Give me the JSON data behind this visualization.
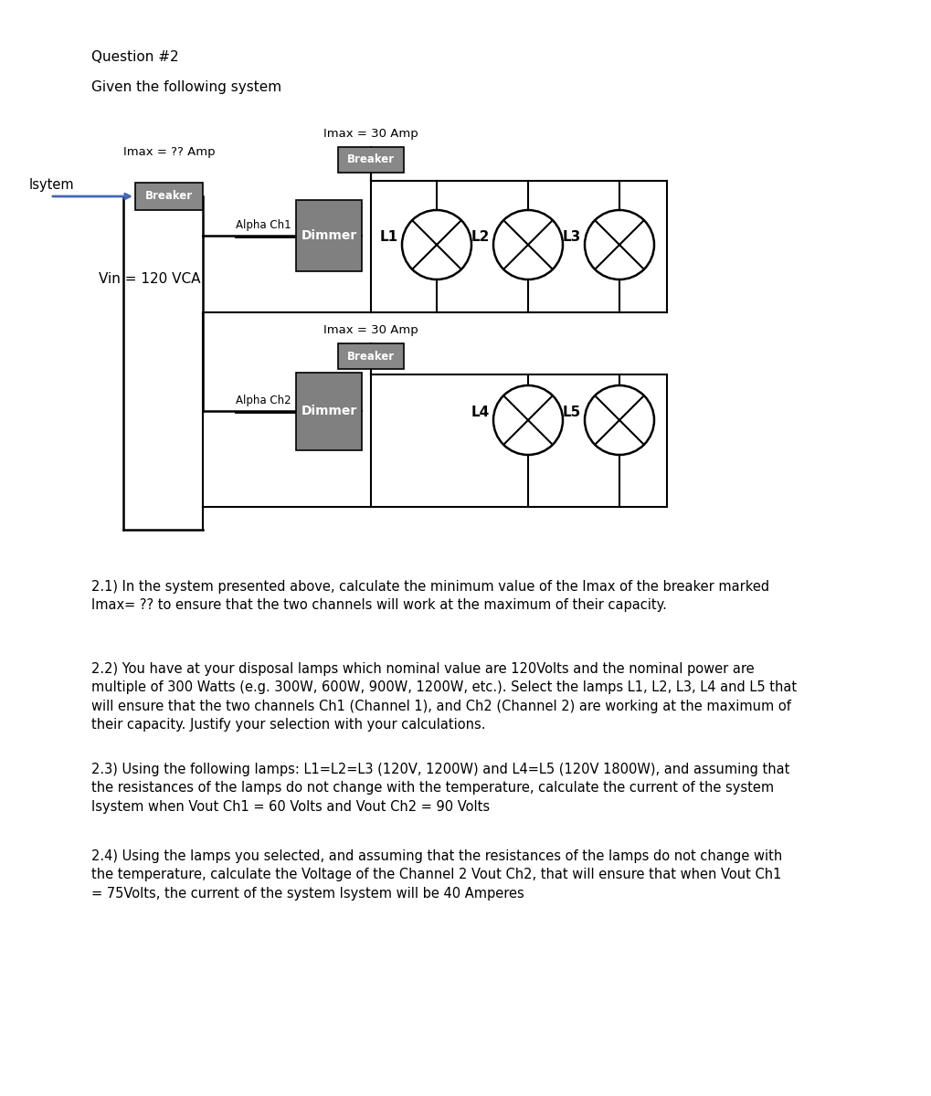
{
  "title": "Question #2",
  "subtitle": "Given the following system",
  "bg_color": "#ffffff",
  "diagram": {
    "isytem_label": "Isytem",
    "imax_qq_label": "Imax = ?? Amp",
    "breaker_label": "Breaker",
    "vin_label": "Vin = 120 VCA",
    "imax30_top_label": "Imax = 30 Amp",
    "breaker_top_label": "Breaker",
    "alpha_ch1_label": "Alpha Ch1",
    "dimmer_label": "Dimmer",
    "l1_label": "L1",
    "l2_label": "L2",
    "l3_label": "L3",
    "imax30_bot_label": "Imax = 30 Amp",
    "breaker_bot_label": "Breaker",
    "alpha_ch2_label": "Alpha Ch2",
    "dimmer2_label": "Dimmer",
    "l4_label": "L4",
    "l5_label": "L5"
  },
  "questions": [
    "2.1) In the system presented above, calculate the minimum value of the Imax of the breaker marked\nImax= ?? to ensure that the two channels will work at the maximum of their capacity.",
    "2.2) You have at your disposal lamps which nominal value are 120Volts and the nominal power are\nmultiple of 300 Watts (e.g. 300W, 600W, 900W, 1200W, etc.). Select the lamps L1, L2, L3, L4 and L5 that\nwill ensure that the two channels Ch1 (Channel 1), and Ch2 (Channel 2) are working at the maximum of\ntheir capacity. Justify your selection with your calculations.",
    "2.3) Using the following lamps: L1=L2=L3 (120V, 1200W) and L4=L5 (120V 1800W), and assuming that\nthe resistances of the lamps do not change with the temperature, calculate the current of the system\nIsystem when Vout Ch1 = 60 Volts and Vout Ch2 = 90 Volts",
    "2.4) Using the lamps you selected, and assuming that the resistances of the lamps do not change with\nthe temperature, calculate the Voltage of the Channel 2 Vout Ch2, that will ensure that when Vout Ch1\n= 75Volts, the current of the system Isystem will be 40 Amperes"
  ],
  "q_bold_prefixes": [
    "2.1)",
    "2.2)",
    "2.3)",
    "2.4)"
  ]
}
